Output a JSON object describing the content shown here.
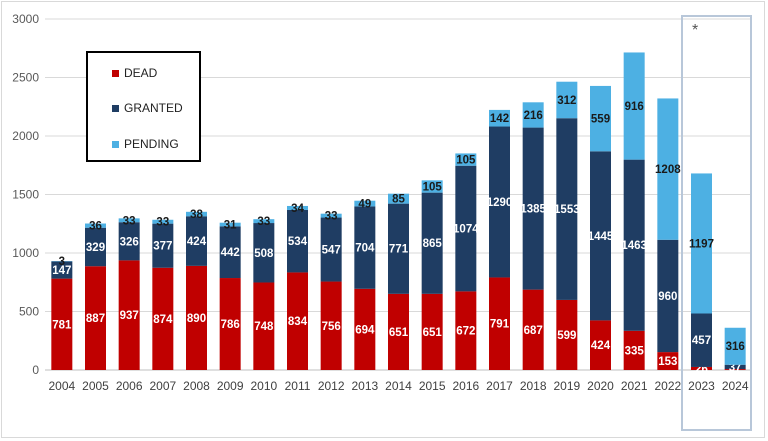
{
  "chart_data": {
    "type": "bar",
    "stacked": true,
    "categories": [
      "2004",
      "2005",
      "2006",
      "2007",
      "2008",
      "2009",
      "2010",
      "2011",
      "2012",
      "2013",
      "2014",
      "2015",
      "2016",
      "2017",
      "2018",
      "2019",
      "2020",
      "2021",
      "2022",
      "2023",
      "2024"
    ],
    "series": [
      {
        "name": "DEAD",
        "color": "#c00000",
        "values": [
          781,
          887,
          937,
          874,
          890,
          786,
          748,
          834,
          756,
          694,
          651,
          651,
          672,
          791,
          687,
          599,
          424,
          335,
          153,
          26,
          8
        ],
        "labels": [
          "781",
          "887",
          "937",
          "874",
          "890",
          "786",
          "748",
          "834",
          "756",
          "694",
          "651",
          "651",
          "672",
          "791",
          "687",
          "599",
          "424",
          "335",
          "153",
          "26",
          ""
        ]
      },
      {
        "name": "GRANTED",
        "color": "#1f3d63",
        "values": [
          147,
          329,
          326,
          377,
          424,
          442,
          508,
          534,
          547,
          704,
          771,
          865,
          1074,
          1290,
          1385,
          1553,
          1445,
          1463,
          960,
          457,
          37
        ],
        "labels": [
          "147",
          "329",
          "326",
          "377",
          "424",
          "442",
          "508",
          "534",
          "547",
          "704",
          "771",
          "865",
          "1074",
          "1290",
          "1385",
          "1553",
          "1445",
          "1463",
          "960",
          "457",
          "37"
        ]
      },
      {
        "name": "PENDING",
        "color": "#4db0e3",
        "values": [
          3,
          36,
          33,
          33,
          38,
          31,
          33,
          34,
          33,
          49,
          85,
          105,
          105,
          142,
          216,
          312,
          559,
          916,
          1208,
          1197,
          316
        ],
        "labels": [
          "3",
          "36",
          "33",
          "33",
          "38",
          "31",
          "33",
          "34",
          "33",
          "49",
          "85",
          "105",
          "105",
          "142",
          "216",
          "312",
          "559",
          "916",
          "1208",
          "1197",
          "316"
        ]
      }
    ],
    "ylim": [
      0,
      3000
    ],
    "yticks": [
      0,
      500,
      1000,
      1500,
      2000,
      2500,
      3000
    ],
    "title": "",
    "xlabel": "",
    "ylabel": "",
    "legend_position": "top-left",
    "grid": true,
    "annotation": "*"
  },
  "legend": {
    "items": [
      {
        "label": "DEAD",
        "color": "#c00000"
      },
      {
        "label": "GRANTED",
        "color": "#1f3d63"
      },
      {
        "label": "PENDING",
        "color": "#4db0e3"
      }
    ]
  },
  "note": "*"
}
